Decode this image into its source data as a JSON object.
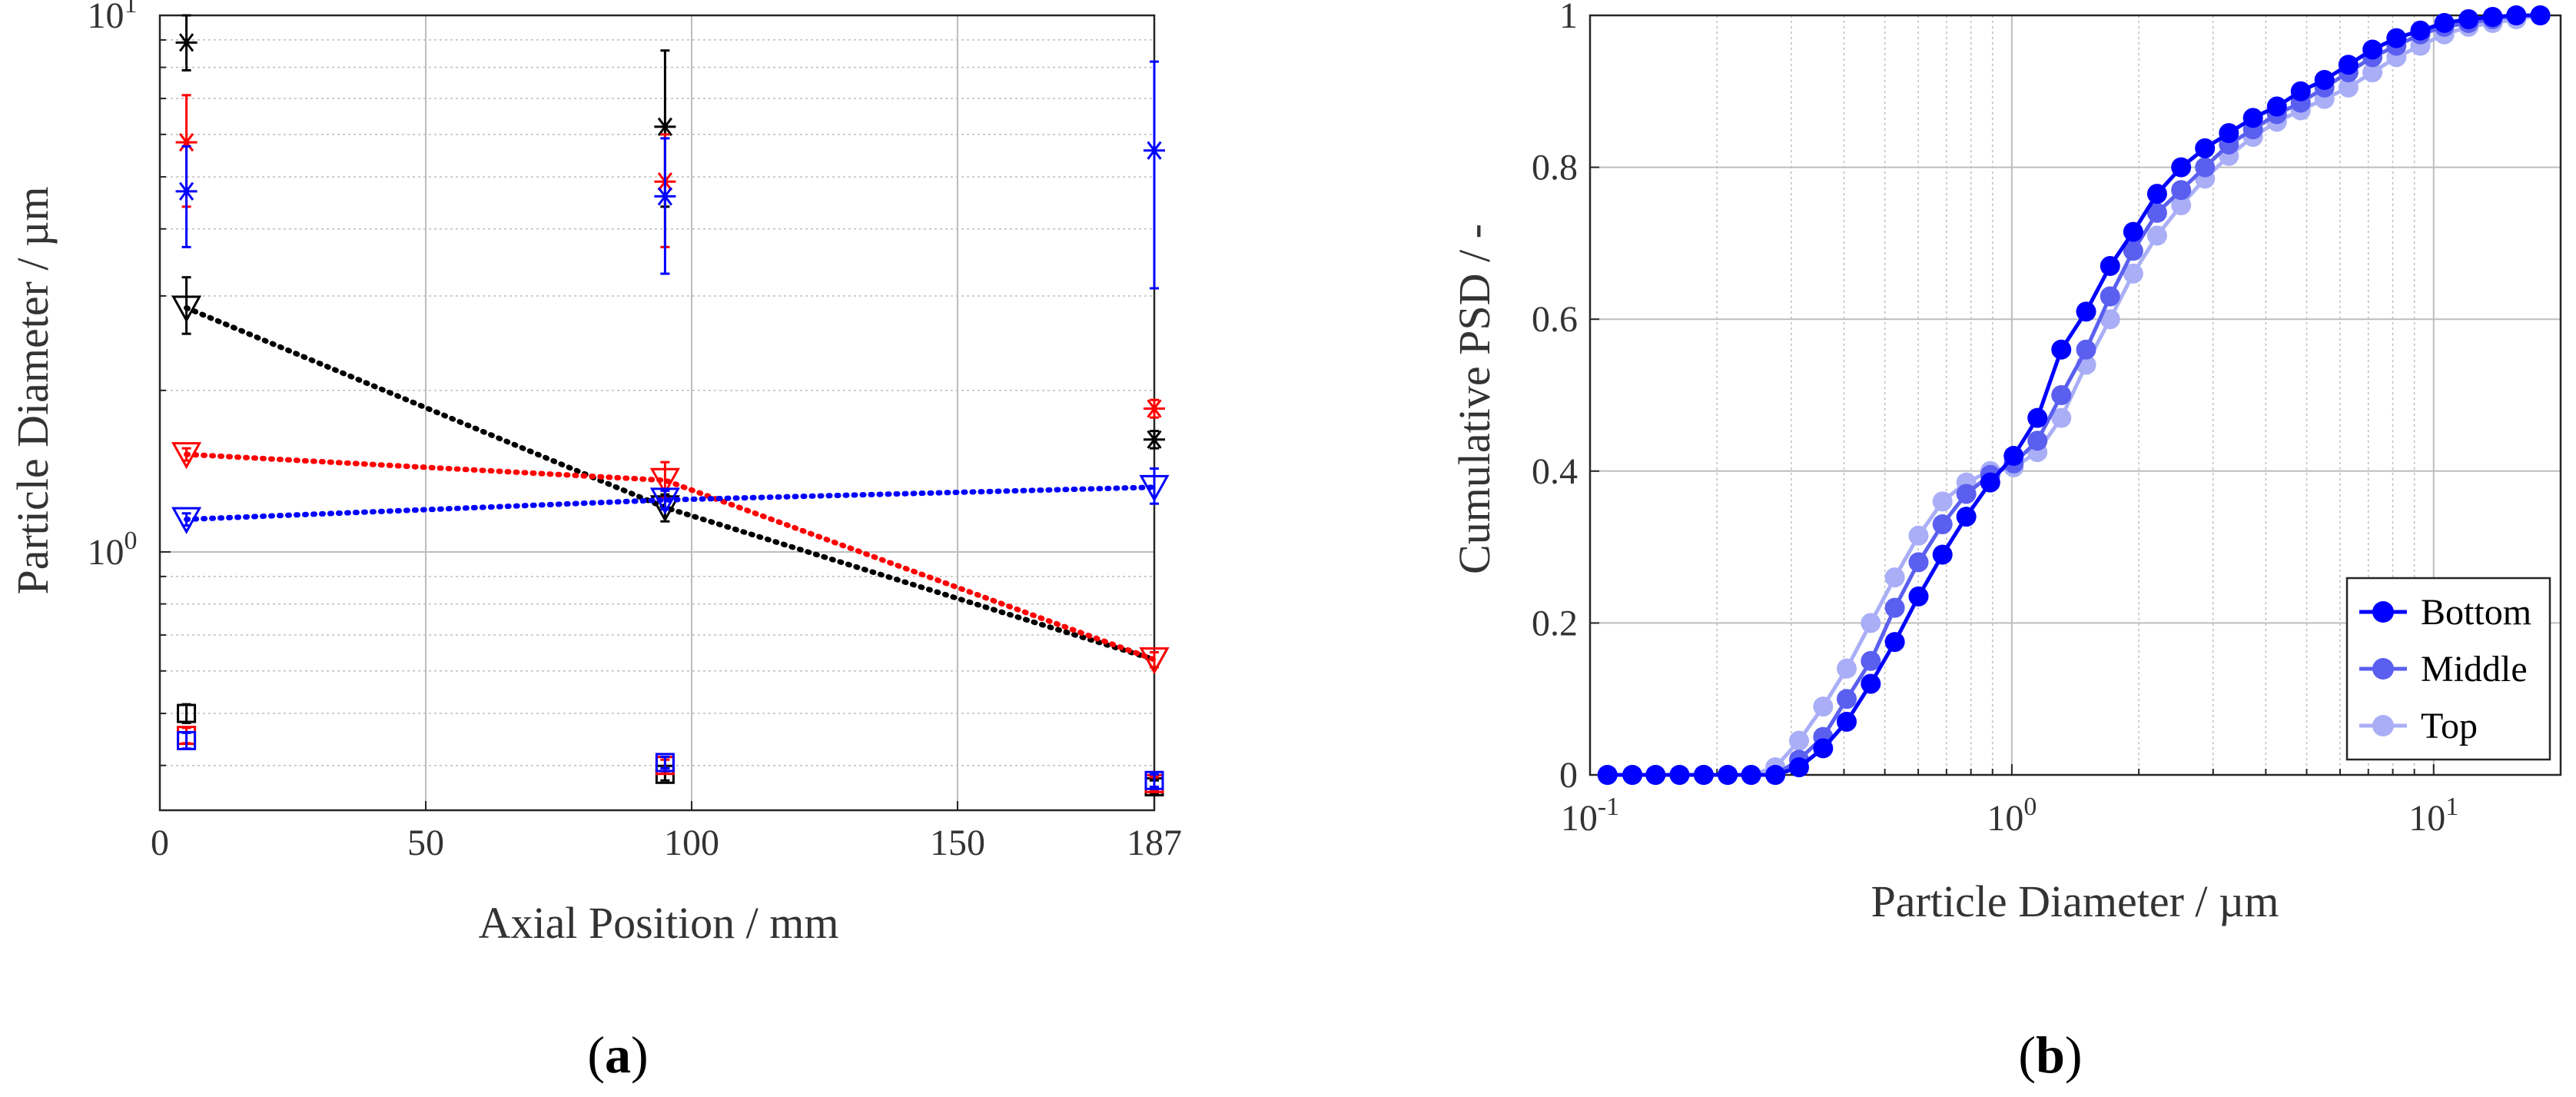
{
  "panels": [
    {
      "open": "(",
      "letter": "a",
      "close": ")"
    },
    {
      "open": "(",
      "letter": "b",
      "close": ")"
    }
  ],
  "chart_data": [
    {
      "id": "a",
      "type": "scatter",
      "xlabel": "Axial Position  / mm",
      "ylabel": "Particle Diameter  / µm",
      "xlim": [
        0,
        187
      ],
      "ylim": [
        0.33,
        10
      ],
      "yscale": "log",
      "grid": true,
      "xticks": [
        0,
        50,
        100,
        150,
        187
      ],
      "yticks": [
        {
          "value": 1,
          "base": "10",
          "exp": "0"
        },
        {
          "value": 10,
          "base": "10",
          "exp": "1"
        }
      ],
      "series": [
        {
          "color": "#000000",
          "marker": "asterisk",
          "points": [
            [
              5,
              8.9,
              7.9,
              10.0
            ],
            [
              95,
              6.2,
              4.4,
              8.6
            ],
            [
              187,
              1.62,
              1.56,
              1.68
            ]
          ]
        },
        {
          "color": "#ff0000",
          "marker": "asterisk",
          "points": [
            [
              5,
              5.8,
              4.4,
              7.1
            ],
            [
              95,
              4.9,
              3.7,
              6.0
            ],
            [
              187,
              1.85,
              1.78,
              1.92
            ]
          ]
        },
        {
          "color": "#0000ff",
          "marker": "asterisk",
          "points": [
            [
              5,
              4.7,
              3.7,
              5.7
            ],
            [
              95,
              4.6,
              3.3,
              5.9
            ],
            [
              187,
              5.6,
              3.1,
              8.2
            ]
          ]
        },
        {
          "color": "#000000",
          "marker": "triangle-down",
          "line": "dotted",
          "points": [
            [
              5,
              2.85,
              2.55,
              3.25
            ],
            [
              95,
              1.21,
              1.14,
              1.28
            ],
            [
              187,
              0.63,
              0.61,
              0.65
            ]
          ]
        },
        {
          "color": "#ff0000",
          "marker": "triangle-down",
          "line": "dotted",
          "points": [
            [
              5,
              1.52,
              1.48,
              1.56
            ],
            [
              95,
              1.36,
              1.26,
              1.47
            ],
            [
              187,
              0.63,
              0.61,
              0.65
            ]
          ]
        },
        {
          "color": "#0000ff",
          "marker": "triangle-down",
          "line": "dotted",
          "points": [
            [
              5,
              1.15,
              1.12,
              1.18
            ],
            [
              95,
              1.25,
              1.2,
              1.3
            ],
            [
              187,
              1.32,
              1.23,
              1.43
            ]
          ]
        },
        {
          "color": "#000000",
          "marker": "square",
          "points": [
            [
              5,
              0.5,
              0.48,
              0.52
            ],
            [
              95,
              0.385,
              0.375,
              0.395
            ],
            [
              187,
              0.365,
              0.355,
              0.375
            ]
          ]
        },
        {
          "color": "#ff0000",
          "marker": "square",
          "points": [
            [
              5,
              0.455,
              0.44,
              0.47
            ],
            [
              95,
              0.4,
              0.39,
              0.41
            ],
            [
              187,
              0.37,
              0.36,
              0.38
            ]
          ]
        },
        {
          "color": "#0000ff",
          "marker": "square",
          "points": [
            [
              5,
              0.445,
              0.43,
              0.46
            ],
            [
              95,
              0.405,
              0.395,
              0.415
            ],
            [
              187,
              0.375,
              0.365,
              0.385
            ]
          ]
        }
      ]
    },
    {
      "id": "b",
      "type": "line",
      "xlabel": "Particle Diameter  / µm",
      "ylabel": "Cumulative PSD  / -",
      "xscale": "log",
      "xlim": [
        0.1,
        20
      ],
      "ylim": [
        0,
        1
      ],
      "grid": true,
      "xticks": [
        {
          "value": 0.1,
          "base": "10",
          "exp": "-1"
        },
        {
          "value": 1,
          "base": "10",
          "exp": "0"
        },
        {
          "value": 10,
          "base": "10",
          "exp": "1"
        }
      ],
      "yticks": [
        "0",
        "0.2",
        "0.4",
        "0.6",
        "0.8",
        "1"
      ],
      "legend": "bottom-right",
      "x": [
        0.11,
        0.126,
        0.143,
        0.163,
        0.186,
        0.212,
        0.241,
        0.275,
        0.313,
        0.357,
        0.406,
        0.463,
        0.528,
        0.601,
        0.685,
        0.78,
        0.889,
        1.01,
        1.15,
        1.31,
        1.5,
        1.71,
        1.94,
        2.21,
        2.52,
        2.87,
        3.27,
        3.73,
        4.25,
        4.84,
        5.51,
        6.28,
        7.16,
        8.16,
        9.3,
        10.6,
        12.1,
        13.8,
        15.7,
        17.9
      ],
      "series": [
        {
          "name": "Bottom",
          "color": "#0000ff",
          "values": [
            0,
            0,
            0,
            0,
            0,
            0,
            0,
            0,
            0.01,
            0.035,
            0.07,
            0.12,
            0.175,
            0.235,
            0.29,
            0.34,
            0.385,
            0.42,
            0.47,
            0.56,
            0.61,
            0.67,
            0.715,
            0.765,
            0.8,
            0.825,
            0.845,
            0.865,
            0.88,
            0.9,
            0.915,
            0.935,
            0.955,
            0.97,
            0.98,
            0.99,
            0.995,
            0.998,
            1,
            1
          ]
        },
        {
          "name": "Middle",
          "color": "#5a5ff0",
          "values": [
            0,
            0,
            0,
            0,
            0,
            0,
            0,
            0,
            0.02,
            0.05,
            0.1,
            0.15,
            0.22,
            0.28,
            0.33,
            0.37,
            0.395,
            0.41,
            0.44,
            0.5,
            0.56,
            0.63,
            0.69,
            0.74,
            0.77,
            0.8,
            0.83,
            0.85,
            0.87,
            0.885,
            0.905,
            0.925,
            0.945,
            0.96,
            0.975,
            0.985,
            0.99,
            0.995,
            1,
            1
          ]
        },
        {
          "name": "Top",
          "color": "#a9aef6",
          "values": [
            0,
            0,
            0,
            0,
            0,
            0,
            0,
            0.01,
            0.045,
            0.09,
            0.14,
            0.2,
            0.26,
            0.315,
            0.36,
            0.385,
            0.4,
            0.405,
            0.425,
            0.47,
            0.54,
            0.6,
            0.66,
            0.71,
            0.75,
            0.785,
            0.815,
            0.84,
            0.86,
            0.875,
            0.89,
            0.905,
            0.925,
            0.945,
            0.96,
            0.975,
            0.985,
            0.99,
            0.995,
            1
          ]
        }
      ]
    }
  ]
}
